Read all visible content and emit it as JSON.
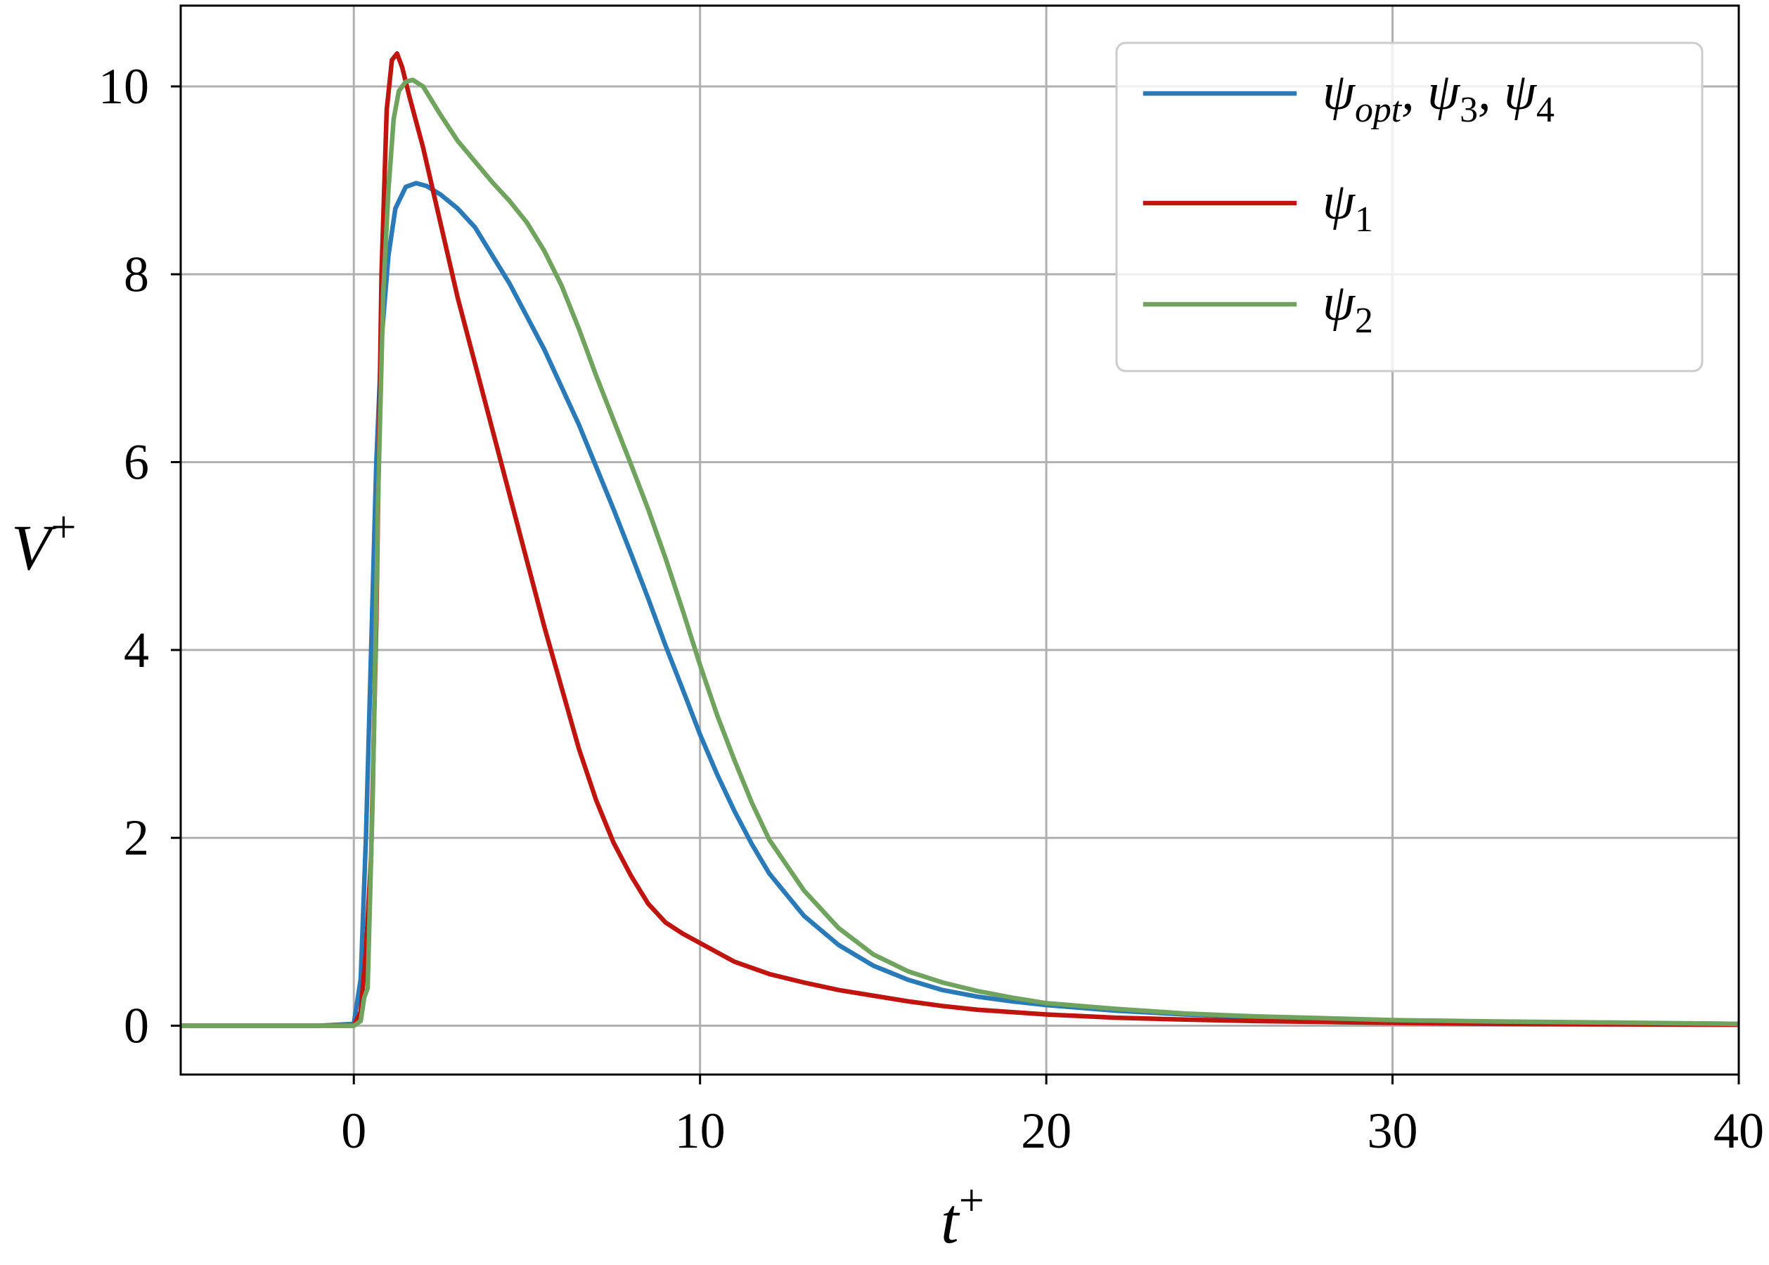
{
  "chart_data": {
    "type": "line",
    "xlabel": [
      {
        "text": "t",
        "sup": "+"
      }
    ],
    "ylabel": [
      {
        "text": "V",
        "sup": "+"
      }
    ],
    "xlim": [
      -5,
      40
    ],
    "ylim": [
      -0.52,
      10.86
    ],
    "xticks": [
      0,
      10,
      20,
      30,
      40
    ],
    "yticks": [
      0,
      2,
      4,
      6,
      8,
      10
    ],
    "grid": true,
    "legend": "top-right",
    "series": [
      {
        "name": [
          {
            "text": "ψ",
            "sub": "opt"
          },
          {
            "text": ", ψ",
            "sub": "3"
          },
          {
            "text": ", ψ",
            "sub": "4"
          }
        ],
        "color": "#2a7ab8",
        "x": [
          -5,
          -1,
          0,
          0.2,
          0.35,
          0.5,
          0.65,
          0.8,
          1.0,
          1.2,
          1.5,
          1.8,
          2.1,
          2.5,
          3,
          3.5,
          4,
          4.5,
          5,
          5.5,
          6,
          6.5,
          7,
          7.5,
          8,
          8.5,
          9,
          9.5,
          10,
          10.5,
          11,
          11.5,
          12,
          13,
          14,
          15,
          16,
          17,
          18,
          19,
          20,
          22,
          24,
          26,
          28,
          30,
          33,
          36,
          40
        ],
        "y": [
          0,
          0,
          0.02,
          0.5,
          2.0,
          4.0,
          6.0,
          7.3,
          8.2,
          8.7,
          8.93,
          8.97,
          8.94,
          8.85,
          8.7,
          8.5,
          8.2,
          7.9,
          7.55,
          7.2,
          6.8,
          6.4,
          5.95,
          5.5,
          5.03,
          4.55,
          4.05,
          3.58,
          3.1,
          2.67,
          2.28,
          1.93,
          1.62,
          1.17,
          0.86,
          0.64,
          0.49,
          0.38,
          0.31,
          0.26,
          0.22,
          0.16,
          0.12,
          0.09,
          0.07,
          0.055,
          0.04,
          0.03,
          0.02
        ]
      },
      {
        "name": [
          {
            "text": "ψ",
            "sub": "1"
          }
        ],
        "color": "#c0140f",
        "x": [
          -5,
          -1,
          0,
          0.2,
          0.35,
          0.5,
          0.65,
          0.8,
          0.95,
          1.1,
          1.25,
          1.4,
          1.6,
          2.0,
          2.5,
          3,
          3.5,
          4,
          4.5,
          5,
          5.5,
          6,
          6.5,
          7,
          7.5,
          8,
          8.5,
          9,
          9.5,
          10,
          11,
          12,
          13,
          14,
          15,
          16,
          17,
          18,
          20,
          22,
          24,
          26,
          28,
          30,
          33,
          36,
          40
        ],
        "y": [
          0,
          0,
          0,
          0.15,
          0.8,
          1.8,
          4.3,
          8.0,
          9.75,
          10.28,
          10.35,
          10.2,
          9.9,
          9.35,
          8.55,
          7.75,
          7.05,
          6.35,
          5.65,
          4.95,
          4.25,
          3.6,
          2.95,
          2.4,
          1.95,
          1.6,
          1.3,
          1.1,
          0.98,
          0.88,
          0.68,
          0.55,
          0.46,
          0.38,
          0.32,
          0.26,
          0.21,
          0.17,
          0.12,
          0.085,
          0.065,
          0.05,
          0.04,
          0.03,
          0.02,
          0.015,
          0.01
        ]
      },
      {
        "name": [
          {
            "text": "ψ",
            "sub": "2"
          }
        ],
        "color": "#6fa35e",
        "x": [
          -5,
          -1,
          0,
          0.2,
          0.3,
          0.4,
          0.55,
          0.7,
          0.85,
          1.0,
          1.15,
          1.3,
          1.5,
          1.7,
          2.0,
          2.5,
          3,
          3.5,
          4,
          4.5,
          5,
          5.5,
          6,
          6.5,
          7,
          7.5,
          8,
          8.5,
          9,
          9.5,
          10,
          10.5,
          11,
          11.5,
          12,
          13,
          14,
          15,
          16,
          17,
          18,
          19,
          20,
          22,
          24,
          26,
          28,
          30,
          33,
          36,
          40
        ],
        "y": [
          0,
          0,
          0,
          0.05,
          0.3,
          0.4,
          2.5,
          5.6,
          7.8,
          8.9,
          9.65,
          9.95,
          10.05,
          10.07,
          10.0,
          9.7,
          9.42,
          9.2,
          8.98,
          8.78,
          8.55,
          8.25,
          7.88,
          7.42,
          6.92,
          6.45,
          5.98,
          5.5,
          4.98,
          4.42,
          3.84,
          3.3,
          2.82,
          2.37,
          1.98,
          1.44,
          1.04,
          0.76,
          0.58,
          0.46,
          0.37,
          0.3,
          0.24,
          0.18,
          0.13,
          0.1,
          0.08,
          0.06,
          0.045,
          0.035,
          0.02
        ]
      }
    ]
  }
}
